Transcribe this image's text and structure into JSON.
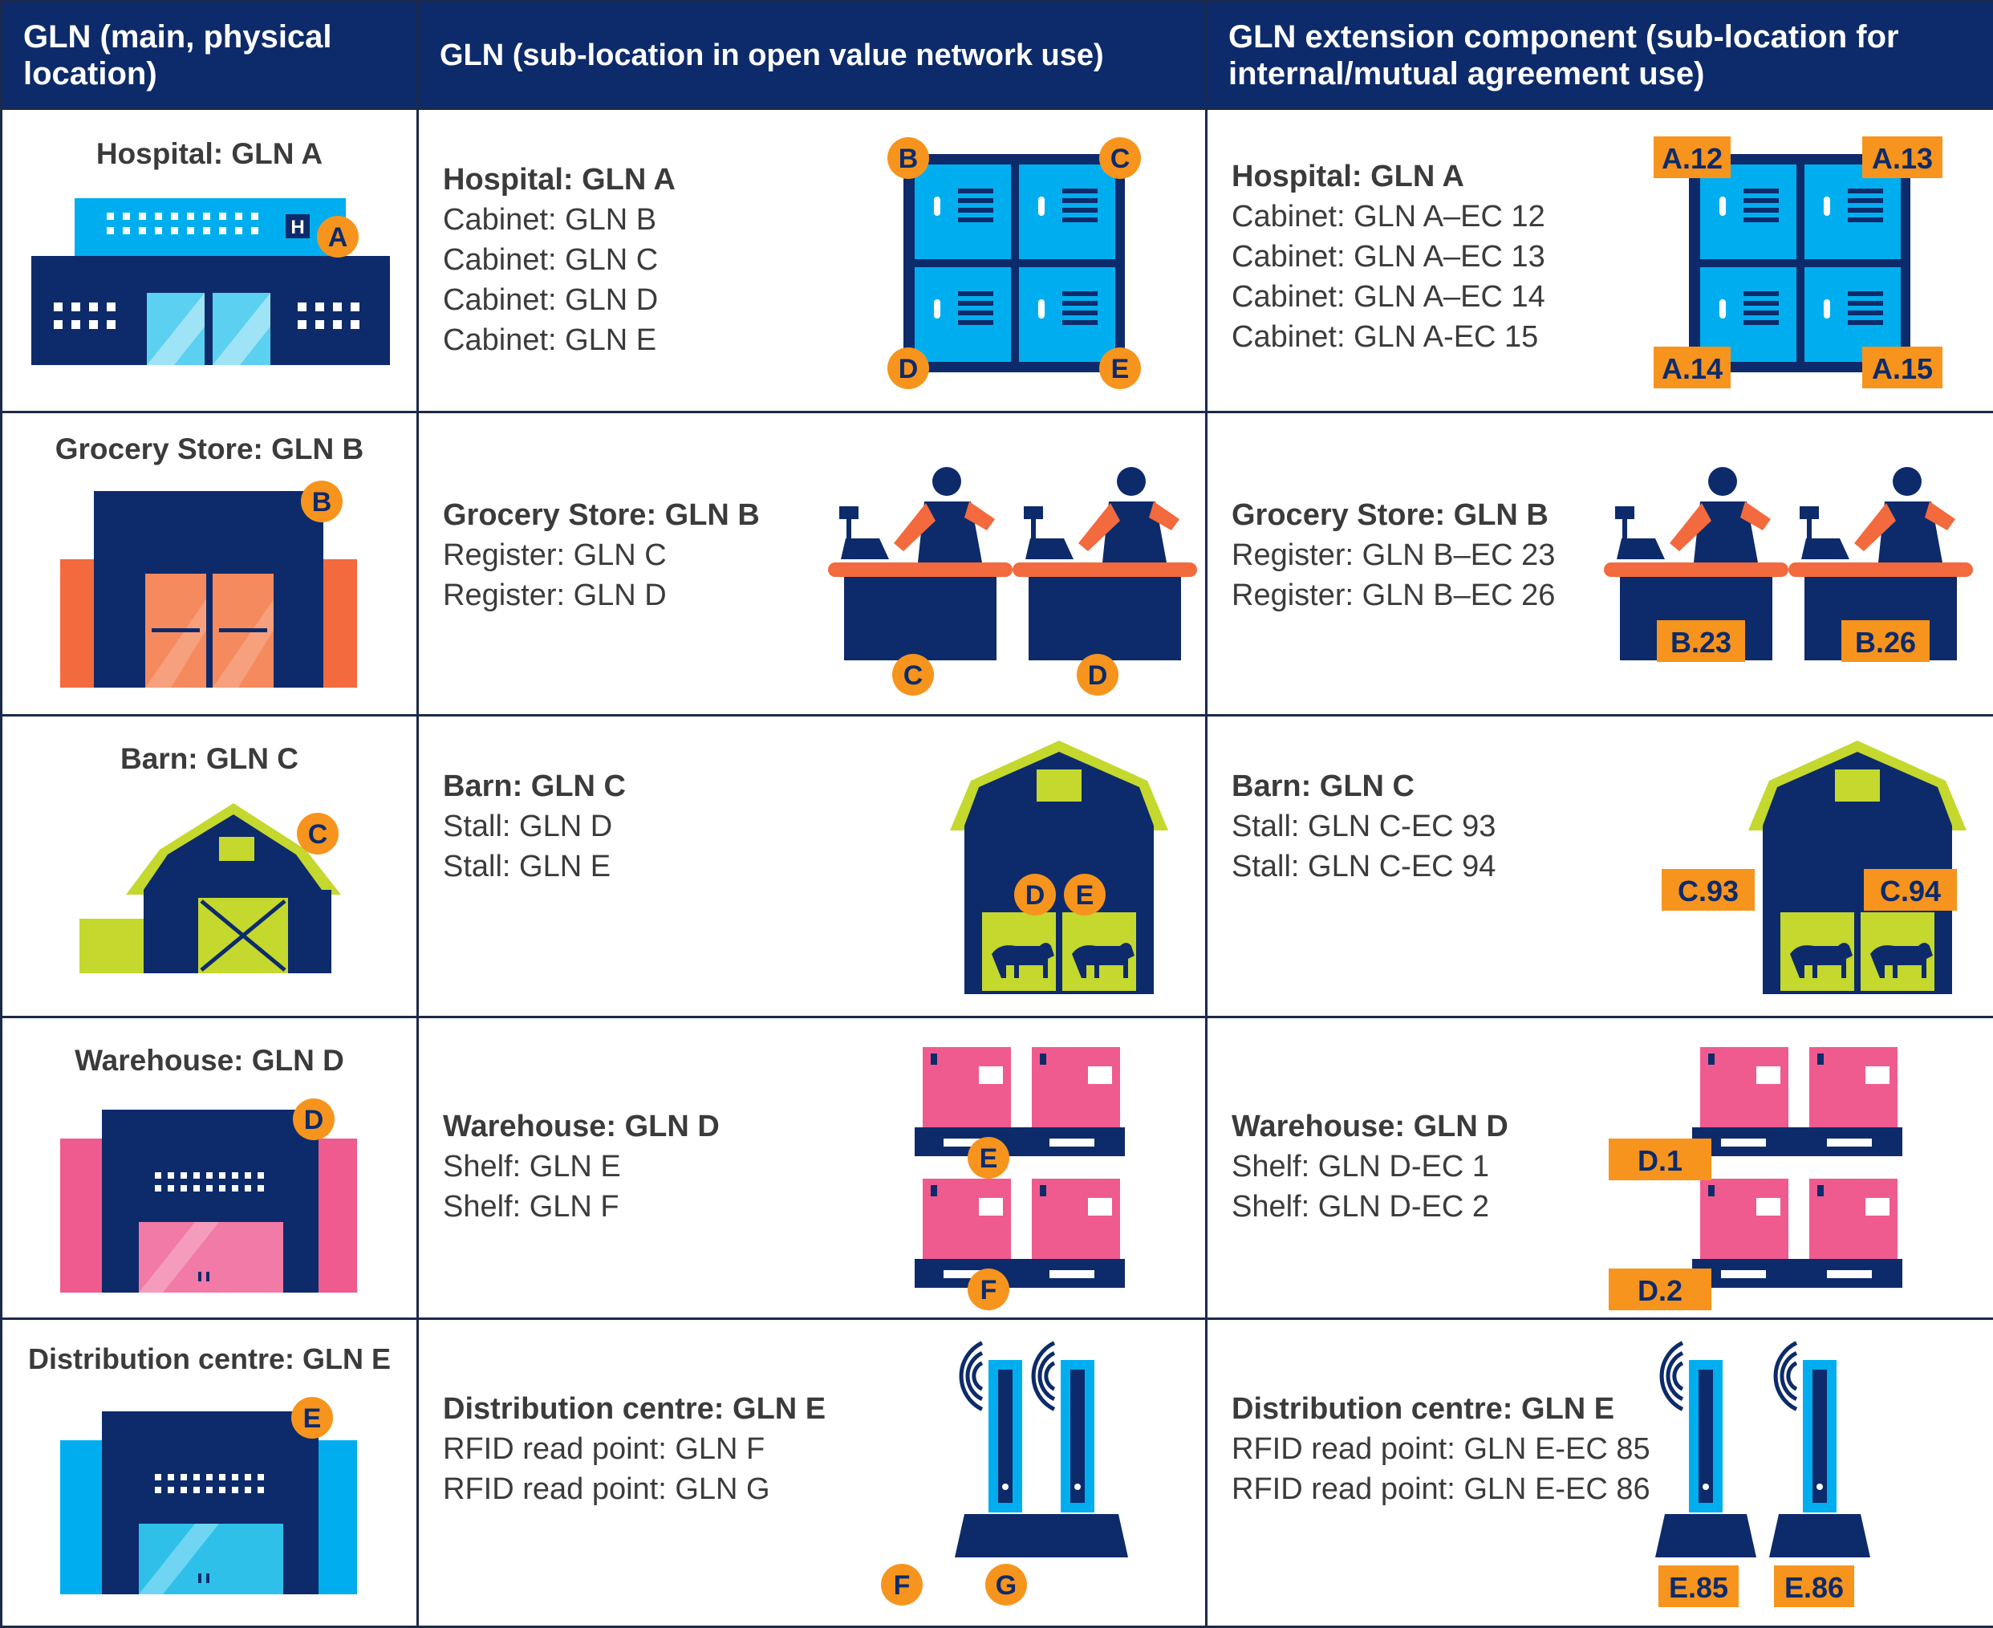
{
  "headers": {
    "col1": "GLN (main, physical location)",
    "col2": "GLN (sub-location in open value network use)",
    "col3": "GLN extension component (sub-location for internal/mutual agreement use)"
  },
  "colors": {
    "navy": "#0d2b6b",
    "cyan": "#00aeef",
    "orange": "#f7941d",
    "lime": "#c4d82e",
    "pink": "#ef5b8f",
    "coral": "#f26a3d"
  },
  "rows": [
    {
      "main": {
        "title": "Hospital: GLN A",
        "badge": "A"
      },
      "open": {
        "title": "Hospital: GLN A",
        "lines": [
          "Cabinet: GLN B",
          "Cabinet: GLN C",
          "Cabinet: GLN D",
          "Cabinet: GLN E"
        ],
        "badges": [
          "B",
          "C",
          "D",
          "E"
        ]
      },
      "ext": {
        "title": "Hospital: GLN A",
        "lines": [
          "Cabinet: GLN A–EC 12",
          "Cabinet: GLN A–EC 13",
          "Cabinet: GLN A–EC 14",
          "Cabinet: GLN A-EC 15"
        ],
        "tags": [
          "A.12",
          "A.13",
          "A.14",
          "A.15"
        ]
      }
    },
    {
      "main": {
        "title": "Grocery Store: GLN B",
        "badge": "B"
      },
      "open": {
        "title": "Grocery Store: GLN B",
        "lines": [
          "Register: GLN C",
          "Register: GLN D"
        ],
        "badges": [
          "C",
          "D"
        ]
      },
      "ext": {
        "title": "Grocery Store: GLN B",
        "lines": [
          "Register: GLN B–EC 23",
          "Register: GLN B–EC 26"
        ],
        "tags": [
          "B.23",
          "B.26"
        ]
      }
    },
    {
      "main": {
        "title": "Barn: GLN C",
        "badge": "C"
      },
      "open": {
        "title": "Barn: GLN C",
        "lines": [
          "Stall: GLN D",
          "Stall: GLN E"
        ],
        "badges": [
          "D",
          "E"
        ]
      },
      "ext": {
        "title": "Barn: GLN C",
        "lines": [
          "Stall: GLN C-EC 93",
          "Stall: GLN C-EC 94"
        ],
        "tags": [
          "C.93",
          "C.94"
        ]
      }
    },
    {
      "main": {
        "title": "Warehouse: GLN D",
        "badge": "D"
      },
      "open": {
        "title": "Warehouse: GLN D",
        "lines": [
          "Shelf: GLN E",
          "Shelf: GLN F"
        ],
        "badges": [
          "E",
          "F"
        ]
      },
      "ext": {
        "title": "Warehouse: GLN D",
        "lines": [
          "Shelf: GLN D-EC 1",
          "Shelf: GLN D-EC 2"
        ],
        "tags": [
          "D.1",
          "D.2"
        ]
      }
    },
    {
      "main": {
        "title": "Distribution centre: GLN E",
        "badge": "E"
      },
      "open": {
        "title": "Distribution centre: GLN E",
        "lines": [
          "RFID read point: GLN F",
          "RFID read point: GLN G"
        ],
        "badges": [
          "F",
          "G"
        ]
      },
      "ext": {
        "title": "Distribution centre: GLN E",
        "lines": [
          "RFID read point: GLN E-EC 85",
          "RFID read point: GLN E-EC 86"
        ],
        "tags": [
          "E.85",
          "E.86"
        ]
      }
    }
  ]
}
